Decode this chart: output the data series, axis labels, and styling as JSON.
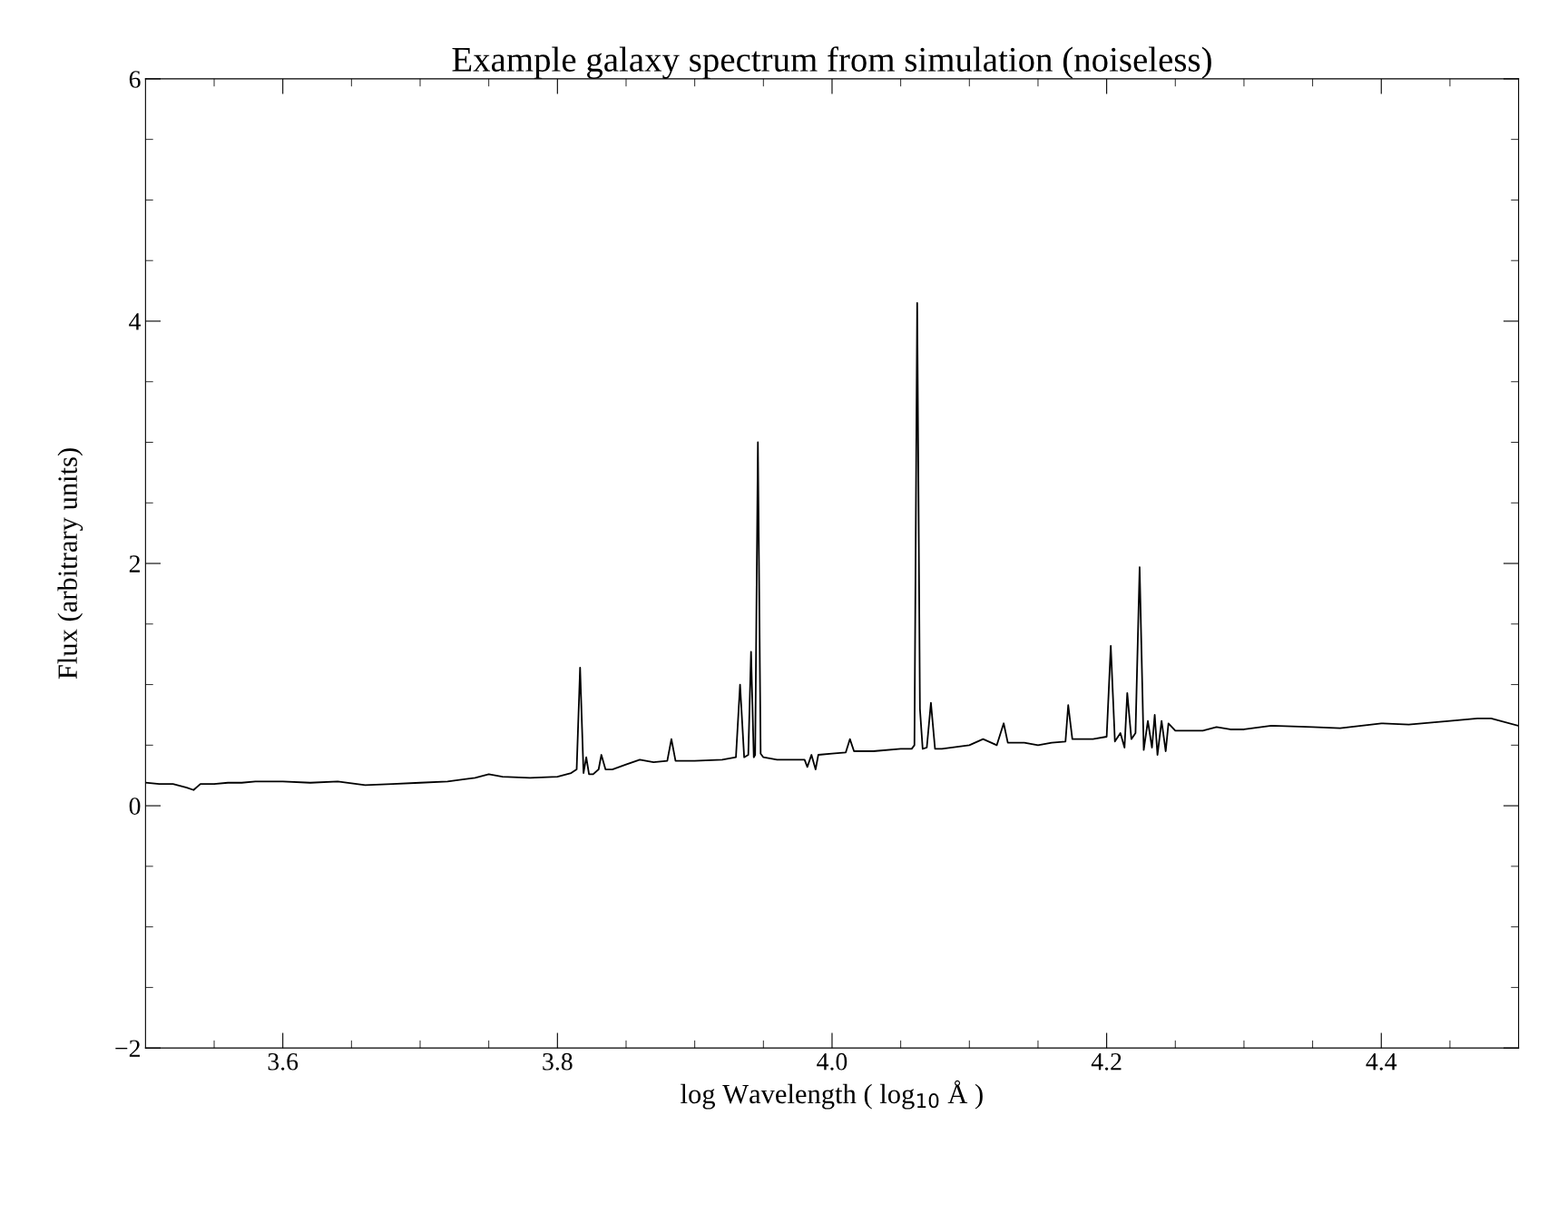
{
  "chart_data": {
    "type": "line",
    "title": "Example galaxy spectrum from simulation (noiseless)",
    "xlabel": "log Wavelength ( log$_{10}$ Å )",
    "ylabel": "Flux (arbitrary units)",
    "xlim": [
      3.5,
      4.5
    ],
    "ylim": [
      -2,
      6
    ],
    "xticks": [
      {
        "value": 3.55,
        "label": null
      },
      3.6,
      {
        "value": 3.65,
        "label": null
      },
      {
        "value": 3.7,
        "label": null
      },
      {
        "value": 3.75,
        "label": null
      },
      3.8,
      {
        "value": 3.85,
        "label": null
      },
      {
        "value": 3.9,
        "label": null
      },
      {
        "value": 3.95,
        "label": null
      },
      {
        "value": 4.0,
        "label": "4.0"
      },
      {
        "value": 4.05,
        "label": null
      },
      {
        "value": 4.1,
        "label": null
      },
      {
        "value": 4.15,
        "label": null
      },
      4.2,
      {
        "value": 4.25,
        "label": null
      },
      {
        "value": 4.3,
        "label": null
      },
      {
        "value": 4.35,
        "label": null
      },
      4.4,
      {
        "value": 4.45,
        "label": null
      }
    ],
    "yticks": [
      {
        "value": -2,
        "label": "−2"
      },
      {
        "value": -1.5,
        "label": null
      },
      {
        "value": -1,
        "label": null
      },
      {
        "value": -0.5,
        "label": null
      },
      0,
      {
        "value": 0.5,
        "label": null
      },
      {
        "value": 1,
        "label": null
      },
      {
        "value": 1.5,
        "label": null
      },
      2,
      {
        "value": 2.5,
        "label": null
      },
      {
        "value": 3,
        "label": null
      },
      {
        "value": 3.5,
        "label": null
      },
      4,
      {
        "value": 4.5,
        "label": null
      },
      {
        "value": 5,
        "label": null
      },
      {
        "value": 5.5,
        "label": null
      },
      6
    ],
    "grid": false,
    "legend": false,
    "marker": "none",
    "line_style": "solid",
    "series": [
      {
        "color": "#000000",
        "x": [
          3.5,
          3.51,
          3.52,
          3.53,
          3.535,
          3.54,
          3.55,
          3.56,
          3.57,
          3.58,
          3.6,
          3.62,
          3.64,
          3.66,
          3.68,
          3.7,
          3.72,
          3.74,
          3.75,
          3.76,
          3.78,
          3.8,
          3.81,
          3.814,
          3.8165,
          3.819,
          3.821,
          3.823,
          3.826,
          3.83,
          3.832,
          3.835,
          3.84,
          3.85,
          3.86,
          3.87,
          3.88,
          3.883,
          3.886,
          3.9,
          3.92,
          3.93,
          3.933,
          3.936,
          3.939,
          3.941,
          3.943,
          3.944,
          3.946,
          3.948,
          3.95,
          3.96,
          3.97,
          3.98,
          3.982,
          3.985,
          3.988,
          3.99,
          4.0,
          4.01,
          4.013,
          4.016,
          4.03,
          4.05,
          4.058,
          4.06,
          4.062,
          4.064,
          4.066,
          4.069,
          4.072,
          4.075,
          4.08,
          4.1,
          4.11,
          4.12,
          4.125,
          4.128,
          4.14,
          4.15,
          4.16,
          4.17,
          4.172,
          4.175,
          4.19,
          4.2,
          4.203,
          4.206,
          4.21,
          4.213,
          4.215,
          4.218,
          4.221,
          4.224,
          4.227,
          4.23,
          4.233,
          4.235,
          4.237,
          4.24,
          4.243,
          4.245,
          4.25,
          4.27,
          4.28,
          4.29,
          4.3,
          4.32,
          4.35,
          4.37,
          4.4,
          4.42,
          4.45,
          4.47,
          4.48,
          4.5
        ],
        "values": [
          0.19,
          0.18,
          0.18,
          0.15,
          0.13,
          0.18,
          0.18,
          0.19,
          0.19,
          0.2,
          0.2,
          0.19,
          0.2,
          0.17,
          0.18,
          0.19,
          0.2,
          0.23,
          0.26,
          0.24,
          0.23,
          0.24,
          0.27,
          0.3,
          1.14,
          0.27,
          0.4,
          0.26,
          0.26,
          0.3,
          0.42,
          0.3,
          0.3,
          0.34,
          0.38,
          0.36,
          0.37,
          0.55,
          0.37,
          0.37,
          0.38,
          0.4,
          1.0,
          0.4,
          0.42,
          1.27,
          0.4,
          0.42,
          3.0,
          0.43,
          0.4,
          0.38,
          0.38,
          0.38,
          0.32,
          0.42,
          0.3,
          0.42,
          0.43,
          0.44,
          0.55,
          0.45,
          0.45,
          0.47,
          0.47,
          0.5,
          4.15,
          0.8,
          0.47,
          0.48,
          0.85,
          0.47,
          0.47,
          0.5,
          0.55,
          0.5,
          0.68,
          0.52,
          0.52,
          0.5,
          0.52,
          0.53,
          0.83,
          0.55,
          0.55,
          0.57,
          1.32,
          0.53,
          0.6,
          0.48,
          0.93,
          0.55,
          0.6,
          1.97,
          0.46,
          0.7,
          0.48,
          0.75,
          0.42,
          0.7,
          0.45,
          0.68,
          0.62,
          0.62,
          0.65,
          0.63,
          0.63,
          0.66,
          0.65,
          0.64,
          0.68,
          0.67,
          0.7,
          0.72,
          0.72,
          0.66
        ]
      }
    ]
  }
}
